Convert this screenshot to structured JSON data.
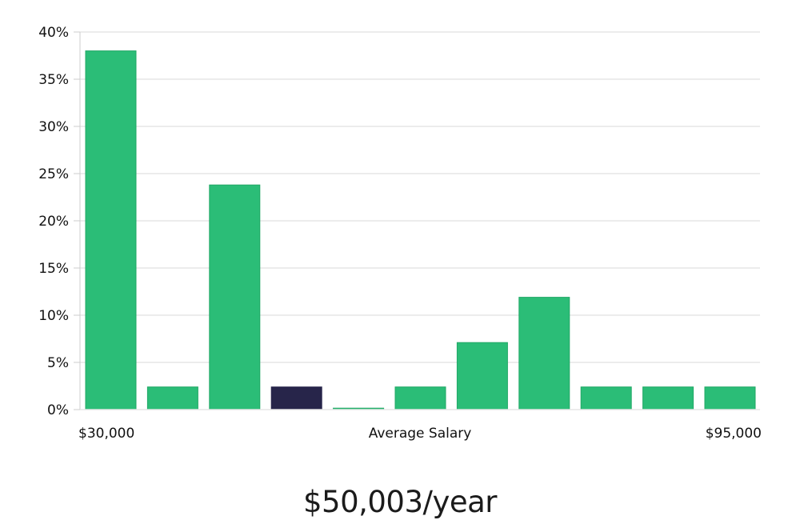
{
  "chart_data": {
    "type": "bar",
    "title": "",
    "xlabel": "Average Salary",
    "ylabel": "",
    "x_tick_left": "$30,000",
    "x_tick_right": "$95,000",
    "ylim": [
      0,
      40
    ],
    "yticks": [
      "0%",
      "5%",
      "10%",
      "15%",
      "20%",
      "25%",
      "30%",
      "35%",
      "40%"
    ],
    "grid": true,
    "legend": "none",
    "highlight_index": 3,
    "colors": {
      "bar": "#2bbd77",
      "bar_stroke": "#22a866",
      "highlight": "#27254a",
      "grid": "#e6e6e6",
      "axis": "#cccccc",
      "text": "#111111"
    },
    "values": [
      38,
      2.4,
      23.8,
      2.4,
      0.15,
      2.4,
      7.1,
      11.9,
      2.4,
      2.4,
      2.4
    ]
  },
  "summary": {
    "salary_text": "$50,003/year"
  }
}
